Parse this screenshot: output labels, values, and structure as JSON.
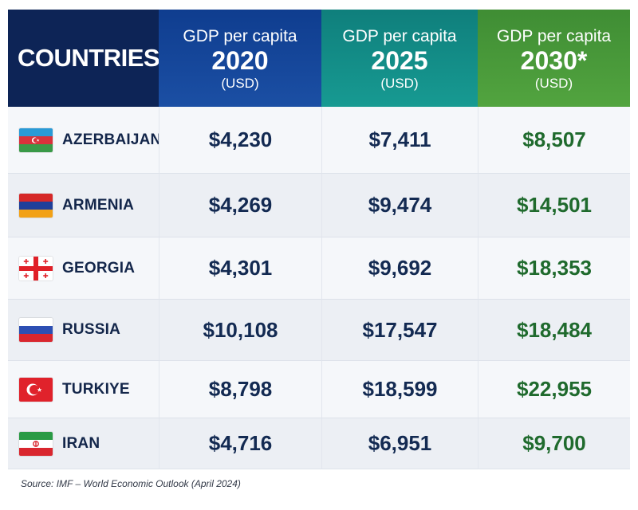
{
  "header": {
    "countries_label": "COUNTRIES",
    "columns": [
      {
        "metric": "GDP per capita",
        "year": "2020",
        "unit": "(USD)"
      },
      {
        "metric": "GDP per capita",
        "year": "2025",
        "unit": "(USD)"
      },
      {
        "metric": "GDP per capita",
        "year": "2030*",
        "unit": "(USD)"
      }
    ]
  },
  "rows": [
    {
      "country": "AZERBAIJAN",
      "flag_icon": "azerbaijan-flag-icon",
      "v2020": "$4,230",
      "v2025": "$7,411",
      "v2030": "$8,507"
    },
    {
      "country": "ARMENIA",
      "flag_icon": "armenia-flag-icon",
      "v2020": "$4,269",
      "v2025": "$9,474",
      "v2030": "$14,501"
    },
    {
      "country": "GEORGIA",
      "flag_icon": "georgia-flag-icon",
      "v2020": "$4,301",
      "v2025": "$9,692",
      "v2030": "$18,353"
    },
    {
      "country": "RUSSIA",
      "flag_icon": "russia-flag-icon",
      "v2020": "$10,108",
      "v2025": "$17,547",
      "v2030": "$18,484"
    },
    {
      "country": "TURKIYE",
      "flag_icon": "turkiye-flag-icon",
      "v2020": "$8,798",
      "v2025": "$18,599",
      "v2030": "$22,955"
    },
    {
      "country": "IRAN",
      "flag_icon": "iran-flag-icon",
      "v2020": "$4,716",
      "v2025": "$6,951",
      "v2030": "$9,700"
    }
  ],
  "source": "Source: IMF – World Economic Outlook (April 2024)",
  "colors": {
    "header_countries": "#0d2456",
    "header_2020": "#1b4fa4",
    "header_2025": "#179a92",
    "header_2030": "#52a43f",
    "value_text": "#132a52",
    "value_2030_text": "#1f6a2d"
  },
  "chart_data": {
    "type": "table",
    "columns": [
      "COUNTRIES",
      "GDP per capita 2020 (USD)",
      "GDP per capita 2025 (USD)",
      "GDP per capita 2030* (USD)"
    ],
    "categories": [
      "AZERBAIJAN",
      "ARMENIA",
      "GEORGIA",
      "RUSSIA",
      "TURKIYE",
      "IRAN"
    ],
    "series": [
      {
        "name": "GDP per capita 2020 (USD)",
        "values": [
          4230,
          4269,
          4301,
          10108,
          8798,
          4716
        ]
      },
      {
        "name": "GDP per capita 2025 (USD)",
        "values": [
          7411,
          9474,
          9692,
          17547,
          18599,
          6951
        ]
      },
      {
        "name": "GDP per capita 2030* (USD)",
        "values": [
          8507,
          14501,
          18353,
          18484,
          22955,
          9700
        ]
      }
    ]
  }
}
